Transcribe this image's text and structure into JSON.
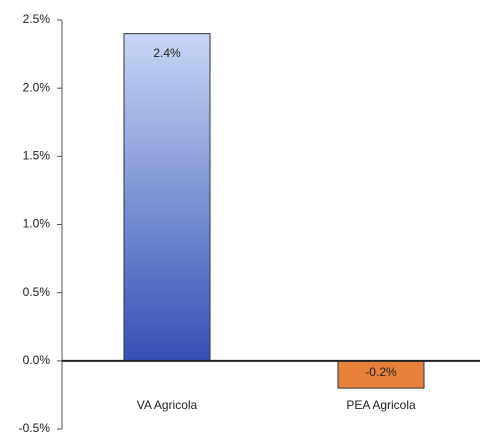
{
  "chart_data": {
    "type": "bar",
    "categories": [
      "VA Agricola",
      "PEA Agricola"
    ],
    "values": [
      2.4,
      -0.2
    ],
    "value_labels": [
      "2.4%",
      "-0.2%"
    ],
    "colors": [
      "#3550b5",
      "#e8813c"
    ],
    "ylim": [
      -0.5,
      2.5
    ],
    "yticks": [
      {
        "value": -0.5,
        "label": "-0.5%"
      },
      {
        "value": 0,
        "label": "0.0%"
      },
      {
        "value": 0.5,
        "label": "0.5%"
      },
      {
        "value": 1,
        "label": "1.0%"
      },
      {
        "value": 1.5,
        "label": "1.5%"
      },
      {
        "value": 2,
        "label": "2.0%"
      },
      {
        "value": 2.5,
        "label": "2.5%"
      }
    ],
    "grid": false
  }
}
